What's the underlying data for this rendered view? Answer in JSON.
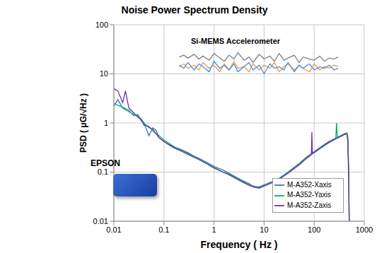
{
  "chart_data": {
    "type": "line",
    "title": "Noise Power Spectrum Density",
    "x_label": "Frequency ( Hz )",
    "y_label": "PSD ( μG/√Hz )",
    "log": true,
    "grid": true,
    "legend": "lower right",
    "xlim": [
      0.01,
      1000
    ],
    "xticks": [
      0.01,
      0.1,
      1,
      10,
      100,
      1000
    ],
    "ylim": [
      0.01,
      100
    ],
    "yticks": [
      0.01,
      0.1,
      1,
      10,
      100
    ],
    "annotations": [
      "Si-MEMS Accelerometer",
      "EPSON"
    ],
    "series": [
      {
        "color": "#808080",
        "x": [
          0.2,
          0.25,
          0.3,
          0.4,
          0.5,
          0.6,
          0.8,
          1,
          1.3,
          1.6,
          2,
          2.5,
          3,
          4,
          5,
          6,
          8,
          10,
          13,
          16,
          20,
          25,
          30,
          40,
          50,
          60,
          80,
          100,
          130,
          160,
          200,
          250,
          300
        ],
        "values": [
          22,
          24,
          21,
          25,
          20,
          23,
          19,
          26,
          21,
          18,
          24,
          20,
          27,
          19,
          22,
          17,
          25,
          20,
          23,
          18,
          26,
          19,
          21,
          24,
          17,
          22,
          20,
          19,
          23,
          18,
          21,
          20,
          22
        ]
      },
      {
        "color": "#ed9a4c",
        "x": [
          0.2,
          0.25,
          0.3,
          0.4,
          0.5,
          0.6,
          0.8,
          1,
          1.3,
          1.6,
          2,
          2.5,
          3,
          4,
          5,
          6,
          8,
          10,
          13,
          16,
          20,
          25,
          30,
          40,
          50,
          60,
          80,
          100,
          130,
          160,
          200,
          250,
          300
        ],
        "values": [
          14,
          16,
          13,
          15,
          12,
          17,
          13,
          15,
          11,
          16,
          12,
          18,
          13,
          14,
          11,
          16,
          12,
          15,
          13,
          17,
          11,
          14,
          16,
          12,
          15,
          13,
          11,
          16,
          12,
          14,
          13,
          15,
          14
        ]
      },
      {
        "color": "#4a90d9",
        "x": [
          0.2,
          0.25,
          0.3,
          0.4,
          0.5,
          0.6,
          0.8,
          1,
          1.3,
          1.6,
          2,
          2.5,
          3,
          4,
          5,
          6,
          8,
          10,
          13,
          16,
          20,
          25,
          30,
          40,
          50,
          60,
          80,
          100,
          130,
          160,
          200,
          250,
          300
        ],
        "values": [
          15,
          13,
          17,
          12,
          16,
          14,
          11,
          18,
          13,
          15,
          12,
          16,
          11,
          14,
          17,
          12,
          15,
          10,
          16,
          13,
          14,
          12,
          17,
          11,
          15,
          13,
          16,
          12,
          14,
          13,
          15,
          12,
          13
        ]
      },
      {
        "name": "M-A352-Xaxis",
        "color": "#2e75b6",
        "x": [
          0.01,
          0.012,
          0.015,
          0.02,
          0.025,
          0.03,
          0.035,
          0.04,
          0.05,
          0.06,
          0.07,
          0.08,
          0.1,
          0.13,
          0.16,
          0.2,
          0.3,
          0.4,
          0.5,
          0.7,
          1,
          1.5,
          2,
          3,
          4,
          5,
          6,
          7,
          8,
          10,
          15,
          20,
          30,
          50,
          70,
          100,
          150,
          200,
          300,
          400,
          450,
          470,
          490,
          500
        ],
        "values": [
          2.2,
          3.0,
          2.0,
          1.7,
          1.5,
          1.4,
          1.2,
          1.0,
          0.55,
          0.8,
          0.7,
          0.5,
          0.42,
          0.36,
          0.32,
          0.3,
          0.25,
          0.21,
          0.19,
          0.16,
          0.13,
          0.11,
          0.095,
          0.075,
          0.065,
          0.058,
          0.052,
          0.05,
          0.05,
          0.055,
          0.065,
          0.075,
          0.1,
          0.15,
          0.2,
          0.26,
          0.35,
          0.42,
          0.52,
          0.6,
          0.62,
          0.45,
          0.08,
          0.01
        ]
      },
      {
        "name": "M-A352-Yaxis",
        "color": "#00b050",
        "x": [
          0.01,
          0.012,
          0.015,
          0.02,
          0.025,
          0.03,
          0.035,
          0.04,
          0.05,
          0.06,
          0.07,
          0.08,
          0.1,
          0.13,
          0.16,
          0.2,
          0.3,
          0.4,
          0.5,
          0.7,
          1,
          1.5,
          2,
          3,
          4,
          5,
          6,
          7,
          8,
          10,
          15,
          20,
          30,
          50,
          70,
          100,
          150,
          200,
          270,
          280,
          290,
          300,
          400,
          450,
          470,
          490,
          500
        ],
        "values": [
          2.5,
          2.3,
          2.1,
          1.8,
          1.4,
          1.5,
          1.1,
          1.0,
          0.8,
          0.75,
          0.6,
          0.55,
          0.45,
          0.38,
          0.33,
          0.29,
          0.24,
          0.21,
          0.18,
          0.15,
          0.125,
          0.1,
          0.09,
          0.072,
          0.062,
          0.055,
          0.05,
          0.048,
          0.047,
          0.052,
          0.062,
          0.072,
          0.095,
          0.14,
          0.19,
          0.25,
          0.33,
          0.4,
          0.48,
          1.0,
          0.5,
          0.5,
          0.58,
          0.6,
          0.4,
          0.06,
          0.01
        ]
      },
      {
        "name": "M-A352-Zaxis",
        "color": "#7030a0",
        "x": [
          0.01,
          0.012,
          0.015,
          0.017,
          0.02,
          0.025,
          0.03,
          0.035,
          0.04,
          0.05,
          0.06,
          0.07,
          0.08,
          0.1,
          0.13,
          0.16,
          0.2,
          0.3,
          0.4,
          0.5,
          0.7,
          1,
          1.5,
          2,
          3,
          4,
          5,
          6,
          7,
          8,
          10,
          15,
          20,
          30,
          50,
          70,
          88,
          90,
          92,
          100,
          150,
          200,
          300,
          400,
          450,
          470,
          490,
          500
        ],
        "values": [
          5.0,
          4.5,
          2.6,
          4.5,
          2.0,
          1.6,
          1.3,
          1.2,
          0.9,
          0.85,
          0.7,
          0.6,
          0.5,
          0.42,
          0.35,
          0.31,
          0.28,
          0.23,
          0.2,
          0.18,
          0.15,
          0.12,
          0.1,
          0.088,
          0.07,
          0.06,
          0.054,
          0.05,
          0.049,
          0.048,
          0.052,
          0.062,
          0.072,
          0.095,
          0.14,
          0.19,
          0.23,
          0.65,
          0.24,
          0.25,
          0.34,
          0.41,
          0.5,
          0.58,
          0.62,
          0.5,
          0.1,
          0.01
        ]
      }
    ]
  }
}
